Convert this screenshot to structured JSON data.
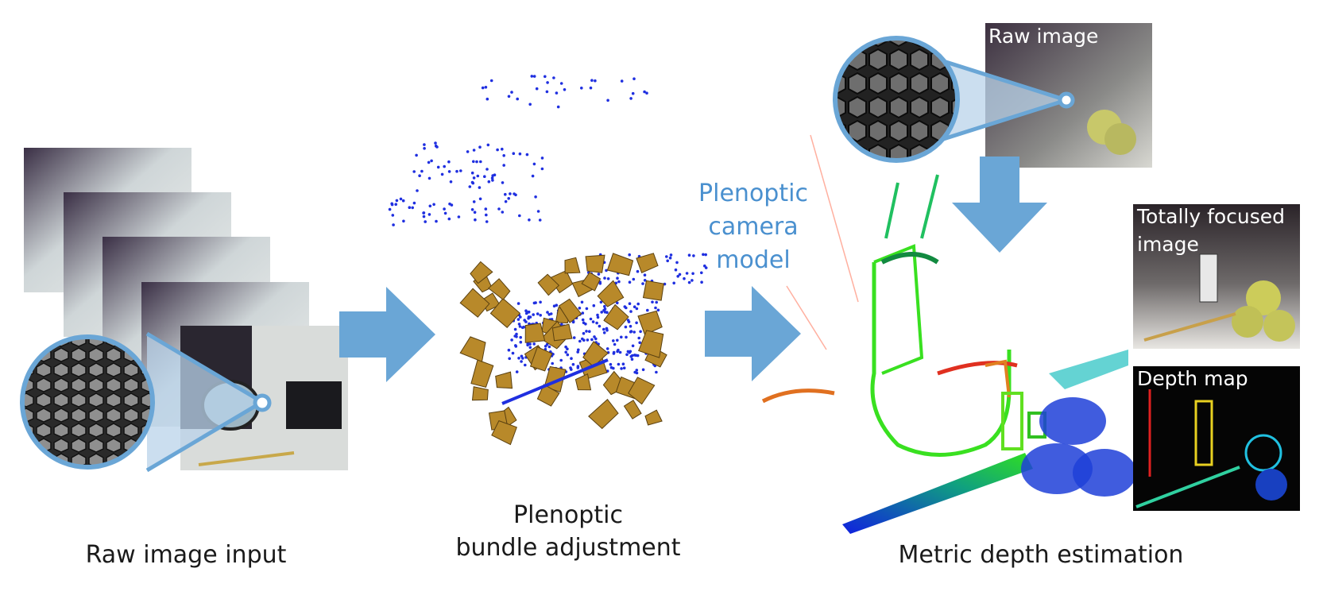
{
  "stages": {
    "input": {
      "label": "Raw image input"
    },
    "bundle": {
      "label_line1": "Plenoptic",
      "label_line2": "bundle adjustment"
    },
    "depth": {
      "label": "Metric depth estimation"
    }
  },
  "camera_model": {
    "line1": "Plenoptic",
    "line2": "camera",
    "line3": "model"
  },
  "thumbnails": {
    "raw_image": "Raw image",
    "focused_line1": "Totally focused",
    "focused_line2": "image",
    "depth_map": "Depth map"
  },
  "colors": {
    "arrow": "#6aa6d6",
    "camera_frustum": "#b8892a",
    "point_cloud": "#1f2fe0",
    "accent_text": "#4a90cf"
  },
  "icons": [
    "raw-frame-stack",
    "magnifier-lens",
    "camera-frustum",
    "point-cloud",
    "arrow-right",
    "arrow-down"
  ]
}
